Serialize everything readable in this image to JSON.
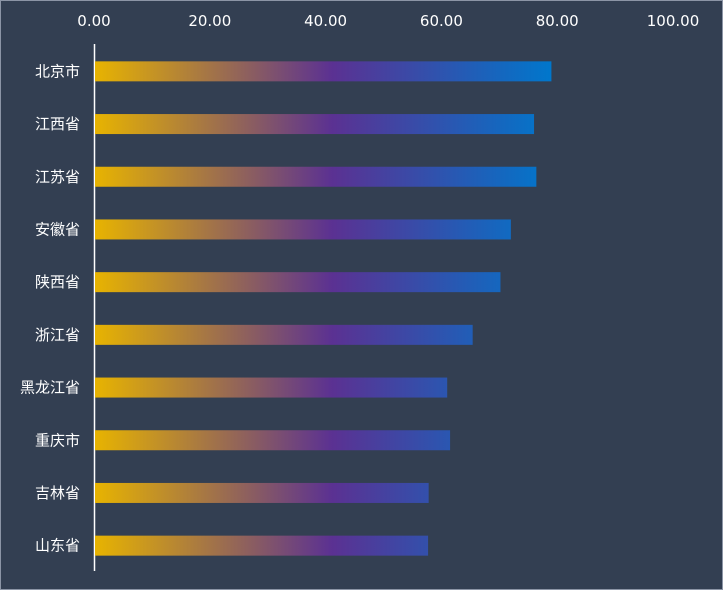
{
  "chart_data": {
    "type": "bar",
    "orientation": "horizontal",
    "categories": [
      "北京市",
      "江西省",
      "江苏省",
      "安徽省",
      "陕西省",
      "浙江省",
      "黑龙江省",
      "重庆市",
      "吉林省",
      "山东省"
    ],
    "values": [
      79.0,
      76.0,
      76.4,
      72.0,
      70.2,
      65.4,
      61.0,
      61.5,
      57.8,
      57.7
    ],
    "xlim": [
      0,
      100
    ],
    "ticks": [
      "0.00",
      "20.00",
      "40.00",
      "60.00",
      "80.00",
      "100.00"
    ],
    "tick_values": [
      0,
      20,
      40,
      60,
      80,
      100
    ],
    "x_axis_position": "top",
    "grid": false,
    "legend": "none",
    "colors": {
      "background": "#333f52",
      "gradient_start": "#e8b400",
      "gradient_mid": "#5b3192",
      "gradient_end": "#0077cc",
      "axis": "#ffffff",
      "text": "#ffffff"
    }
  }
}
